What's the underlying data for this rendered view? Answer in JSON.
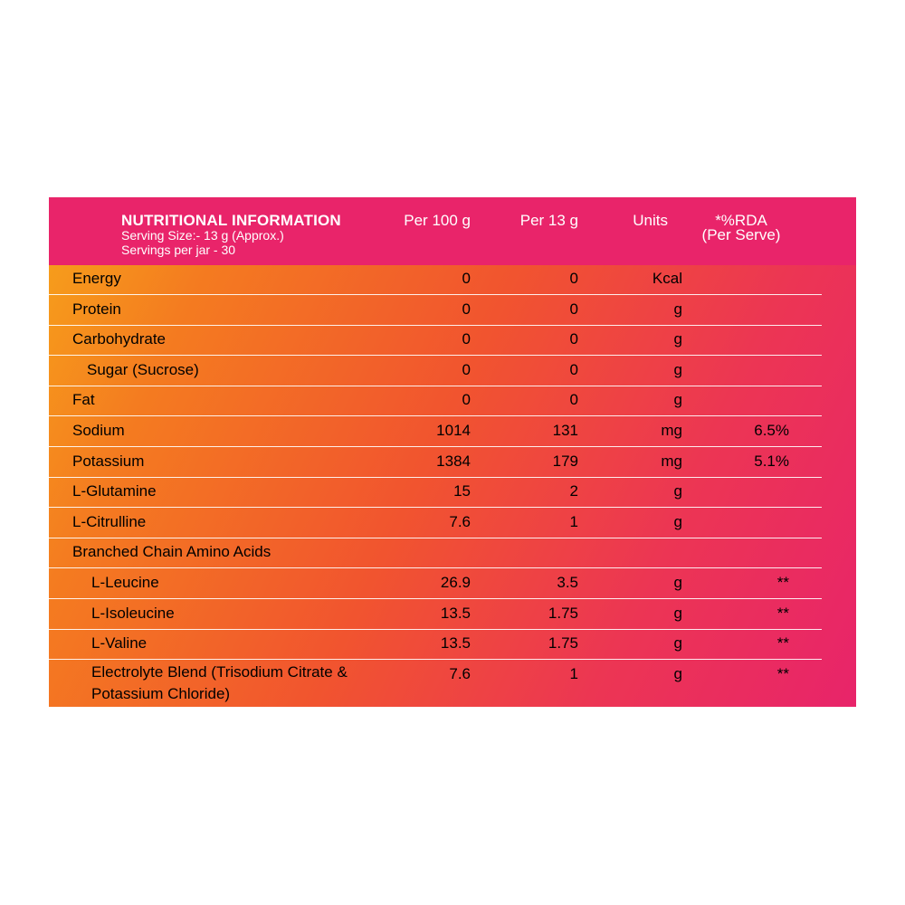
{
  "header": {
    "title": "NUTRITIONAL INFORMATION",
    "serving_size": "Serving Size:- 13 g (Approx.)",
    "servings_per_jar": "Servings per jar - 30",
    "col_per100": "Per 100 g",
    "col_per13": "Per 13 g",
    "col_units": "Units",
    "col_rda_1": "*%RDA",
    "col_rda_2": "(Per Serve)"
  },
  "rows": [
    {
      "name": "Energy",
      "per100": "0",
      "per13": "0",
      "unit": "Kcal",
      "rda": ""
    },
    {
      "name": "Protein",
      "per100": "0",
      "per13": "0",
      "unit": "g",
      "rda": ""
    },
    {
      "name": "Carbohydrate",
      "per100": "0",
      "per13": "0",
      "unit": "g",
      "rda": ""
    },
    {
      "name": "Sugar (Sucrose)",
      "per100": "0",
      "per13": "0",
      "unit": "g",
      "rda": ""
    },
    {
      "name": "Fat",
      "per100": "0",
      "per13": "0",
      "unit": "g",
      "rda": ""
    },
    {
      "name": "Sodium",
      "per100": "1014",
      "per13": "131",
      "unit": "mg",
      "rda": "6.5%"
    },
    {
      "name": "Potassium",
      "per100": "1384",
      "per13": "179",
      "unit": "mg",
      "rda": "5.1%"
    },
    {
      "name": "L-Glutamine",
      "per100": "15",
      "per13": "2",
      "unit": "g",
      "rda": ""
    },
    {
      "name": "L-Citrulline",
      "per100": "7.6",
      "per13": "1",
      "unit": "g",
      "rda": ""
    },
    {
      "name": "Branched Chain Amino Acids",
      "per100": "",
      "per13": "",
      "unit": "",
      "rda": ""
    },
    {
      "name": "L-Leucine",
      "per100": "26.9",
      "per13": "3.5",
      "unit": "g",
      "rda": "**"
    },
    {
      "name": "L-Isoleucine",
      "per100": "13.5",
      "per13": "1.75",
      "unit": "g",
      "rda": "**"
    },
    {
      "name": "L-Valine",
      "per100": "13.5",
      "per13": "1.75",
      "unit": "g",
      "rda": "**"
    },
    {
      "name": "Electrolyte Blend (Trisodium Citrate & Potassium Chloride)",
      "per100": "7.6",
      "per13": "1",
      "unit": "g",
      "rda": "**"
    }
  ]
}
